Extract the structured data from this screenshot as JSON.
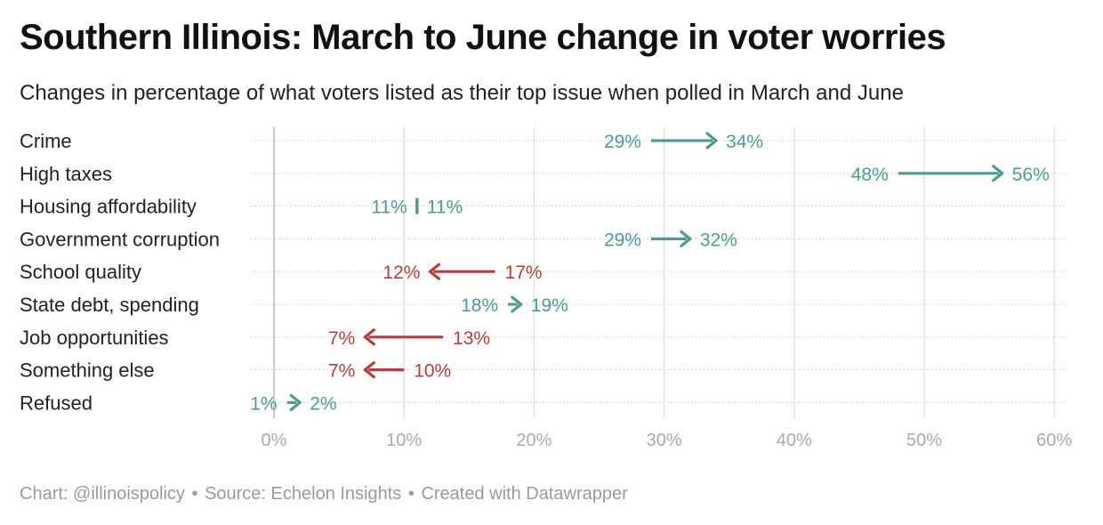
{
  "title": "Southern Illinois: March to June change in voter worries",
  "subtitle": "Changes in percentage of what voters listed as their top issue when polled in March and June",
  "colors": {
    "increase": "#4e9c90",
    "decrease": "#b2403f",
    "grid": "#cfcfcf",
    "axis_text": "#aaaaaa",
    "label_text": "#222222"
  },
  "footer": {
    "chart_credit": "Chart: @illinoispolicy",
    "source": "Source: Echelon Insights",
    "tool": "Created with Datawrapper",
    "separator": "•"
  },
  "chart_data": {
    "type": "arrow",
    "xlim": [
      0,
      60
    ],
    "ticks": [
      0,
      10,
      20,
      30,
      40,
      50,
      60
    ],
    "tick_labels": [
      "0%",
      "10%",
      "20%",
      "30%",
      "40%",
      "50%",
      "60%"
    ],
    "grid": true,
    "series": [
      {
        "name": "March",
        "values": [
          29,
          48,
          11,
          29,
          17,
          18,
          13,
          10,
          1
        ]
      },
      {
        "name": "June",
        "values": [
          34,
          56,
          11,
          32,
          12,
          19,
          7,
          7,
          2
        ]
      }
    ],
    "rows": [
      {
        "label": "Crime",
        "march": 29,
        "june": 34,
        "march_label": "29%",
        "june_label": "34%"
      },
      {
        "label": "High taxes",
        "march": 48,
        "june": 56,
        "march_label": "48%",
        "june_label": "56%"
      },
      {
        "label": "Housing affordability",
        "march": 11,
        "june": 11,
        "march_label": "11%",
        "june_label": "11%"
      },
      {
        "label": "Government corruption",
        "march": 29,
        "june": 32,
        "march_label": "29%",
        "june_label": "32%"
      },
      {
        "label": "School quality",
        "march": 17,
        "june": 12,
        "march_label": "17%",
        "june_label": "12%"
      },
      {
        "label": "State debt, spending",
        "march": 18,
        "june": 19,
        "march_label": "18%",
        "june_label": "19%"
      },
      {
        "label": "Job opportunities",
        "march": 13,
        "june": 7,
        "march_label": "13%",
        "june_label": "7%"
      },
      {
        "label": "Something else",
        "march": 10,
        "june": 7,
        "march_label": "10%",
        "june_label": "7%"
      },
      {
        "label": "Refused",
        "march": 1,
        "june": 2,
        "march_label": "1%",
        "june_label": "2%"
      }
    ]
  }
}
